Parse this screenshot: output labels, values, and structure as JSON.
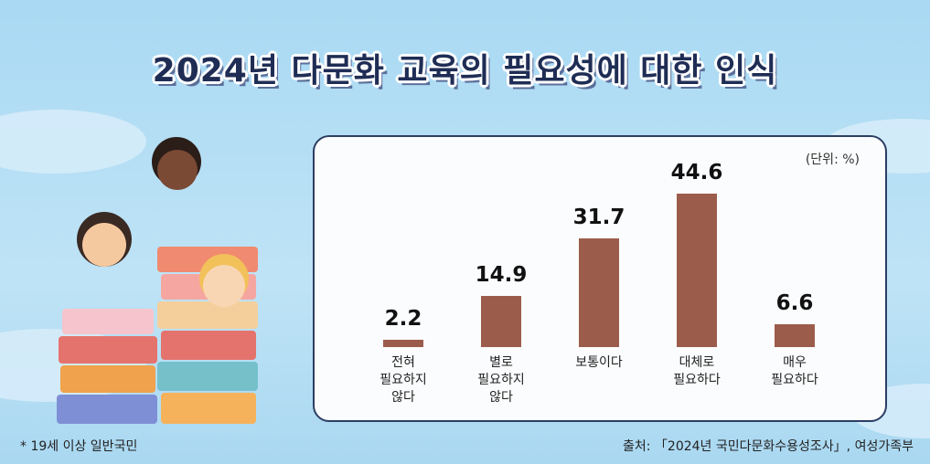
{
  "chart_data": {
    "type": "bar",
    "title": "2024년 다문화 교육의 필요성에 대한 인식",
    "unit_label": "(단위: %)",
    "categories": [
      "전혀\n필요하지\n않다",
      "별로\n필요하지\n않다",
      "보통이다",
      "대체로\n필요하다",
      "매우\n필요하다"
    ],
    "values": [
      2.2,
      14.9,
      31.7,
      44.6,
      6.6
    ],
    "color": "#9c5c4b",
    "footnote": "* 19세 이상 일반국민",
    "source": "출처: 「2024년 국민다문화수용성조사」, 여성가족부"
  }
}
